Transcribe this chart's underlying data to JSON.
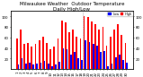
{
  "title": "Milwaukee Weather  Outdoor Temperature\nDaily High/Low",
  "background_color": "#ffffff",
  "bar_color_high": "#ff0000",
  "bar_color_low": "#0000ff",
  "ylim": [
    0,
    110
  ],
  "yticks": [
    20,
    40,
    60,
    80,
    100
  ],
  "dashed_line_x": 17.5,
  "highs": [
    58,
    75,
    48,
    50,
    42,
    48,
    55,
    62,
    50,
    38,
    42,
    58,
    92,
    88,
    70,
    75,
    62,
    58,
    100,
    98,
    90,
    85,
    75,
    80,
    45,
    62,
    75,
    85,
    65,
    50
  ],
  "lows": [
    8,
    20,
    10,
    12,
    8,
    10,
    12,
    15,
    10,
    5,
    8,
    14,
    40,
    38,
    28,
    32,
    20,
    18,
    55,
    52,
    48,
    44,
    32,
    35,
    5,
    10,
    22,
    28,
    18,
    12
  ],
  "num_bars": 30,
  "tick_fontsize": 2.8,
  "title_fontsize": 4.0
}
